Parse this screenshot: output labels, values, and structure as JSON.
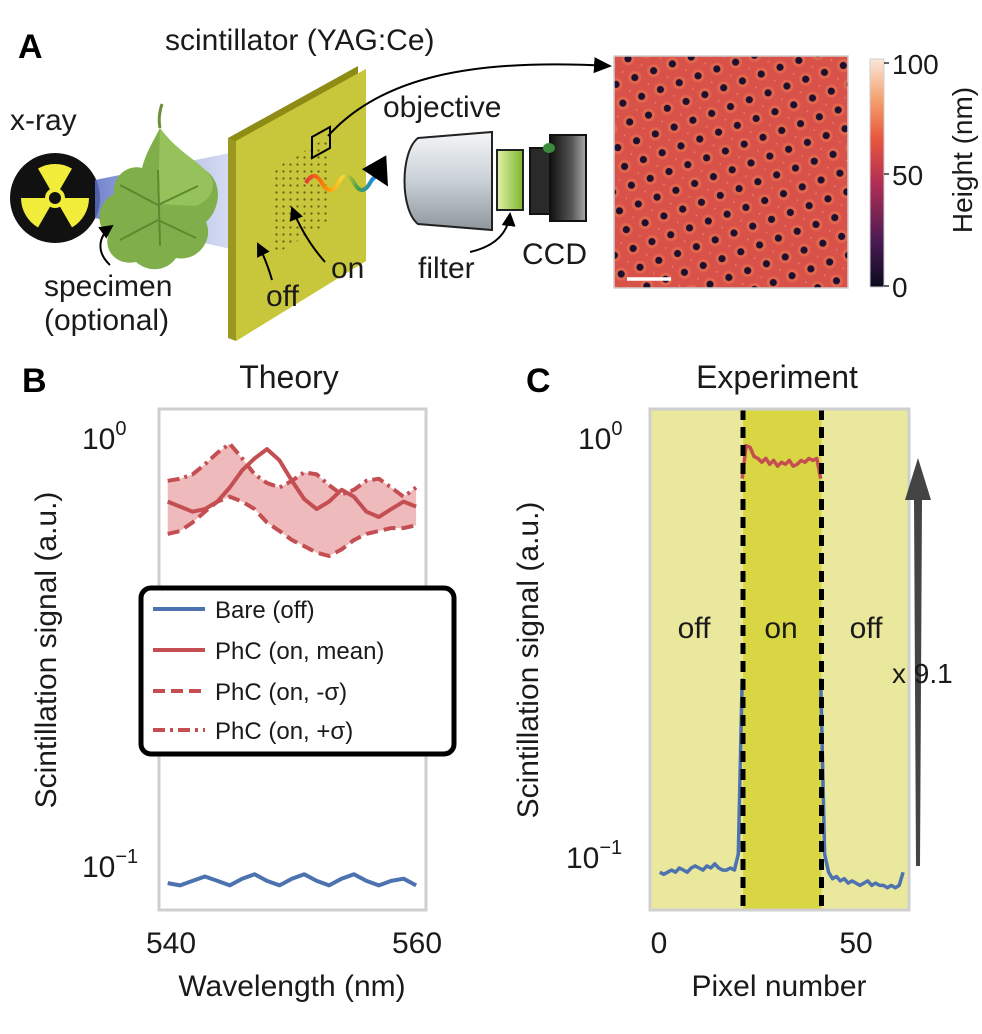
{
  "panel_a": {
    "letter": "A",
    "labels": {
      "scintillator": "scintillator (YAG:Ce)",
      "xray": "x-ray",
      "objective": "objective",
      "specimen_line1": "specimen",
      "specimen_line2": "(optional)",
      "off": "off",
      "on": "on",
      "filter": "filter",
      "ccd": "CCD"
    },
    "colorbar": {
      "label": "Height (nm)",
      "ticks": [
        "100",
        "50",
        "0"
      ],
      "range": [
        0,
        100
      ]
    },
    "colors": {
      "scintillator": "#c8c63a",
      "afm_base": "#d9524a",
      "afm_hole": "#1b1030"
    }
  },
  "chart_data": [
    {
      "panel": "B",
      "type": "line",
      "title": "Theory",
      "xlabel": "Wavelength (nm)",
      "ylabel": "Scintillation signal (a.u.)",
      "xlim": [
        539.3,
        560.8
      ],
      "ylim": [
        0.065,
        1.2
      ],
      "yscale": "log",
      "x_ticks": [
        "540",
        "560"
      ],
      "y_ticks": [
        {
          "base": "10",
          "exp": "0",
          "value": 1.0
        },
        {
          "base": "10",
          "exp": "−1",
          "value": 0.1
        }
      ],
      "legend": {
        "placement": "center-left",
        "entries": [
          "Bare (off)",
          "PhC (on, mean)",
          "PhC (on, -σ)",
          "PhC (on, +σ)"
        ]
      },
      "x": [
        540,
        541,
        542,
        543,
        544,
        545,
        546,
        547,
        548,
        549,
        550,
        551,
        552,
        553,
        554,
        555,
        556,
        557,
        558,
        559,
        560
      ],
      "series": [
        {
          "name": "Bare (off)",
          "color": "#4c72b0",
          "style": "solid",
          "values": [
            0.076,
            0.075,
            0.077,
            0.079,
            0.077,
            0.075,
            0.078,
            0.08,
            0.077,
            0.075,
            0.078,
            0.08,
            0.077,
            0.075,
            0.078,
            0.08,
            0.077,
            0.075,
            0.077,
            0.078,
            0.075
          ]
        },
        {
          "name": "PhC (on, mean)",
          "color": "#c44e52",
          "style": "solid",
          "values": [
            0.7,
            0.68,
            0.66,
            0.67,
            0.7,
            0.76,
            0.84,
            0.9,
            0.95,
            0.89,
            0.79,
            0.71,
            0.67,
            0.7,
            0.75,
            0.72,
            0.66,
            0.64,
            0.67,
            0.7,
            0.68
          ]
        },
        {
          "name": "PhC (on, -σ)",
          "color": "#c44e52",
          "style": "dashed",
          "values": [
            0.58,
            0.59,
            0.62,
            0.66,
            0.7,
            0.72,
            0.7,
            0.67,
            0.62,
            0.59,
            0.56,
            0.54,
            0.52,
            0.51,
            0.53,
            0.56,
            0.58,
            0.59,
            0.6,
            0.6,
            0.61
          ]
        },
        {
          "name": "PhC (on, +σ)",
          "color": "#c44e52",
          "style": "dashdot",
          "values": [
            0.79,
            0.8,
            0.82,
            0.87,
            0.93,
            0.98,
            0.9,
            0.82,
            0.78,
            0.76,
            0.79,
            0.83,
            0.82,
            0.77,
            0.73,
            0.75,
            0.79,
            0.8,
            0.76,
            0.72,
            0.76
          ]
        }
      ],
      "band": {
        "between": [
          "PhC (on, -σ)",
          "PhC (on, +σ)"
        ],
        "color": "#e8a3a6"
      },
      "grid": false
    },
    {
      "panel": "C",
      "type": "line",
      "title": "Experiment",
      "xlabel": "Pixel number",
      "ylabel": "Scintillation signal (a.u.)",
      "xlim": [
        -2.5,
        63.5
      ],
      "ylim": [
        0.065,
        1.2
      ],
      "yscale": "log",
      "x_ticks": [
        "0",
        "50"
      ],
      "y_ticks": [
        {
          "base": "10",
          "exp": "0",
          "value": 1.0
        },
        {
          "base": "10",
          "exp": "−1",
          "value": 0.1
        }
      ],
      "regions": [
        {
          "label": "off",
          "x_range": [
            -2.5,
            21.2
          ],
          "color": "#e9e89c"
        },
        {
          "label": "on",
          "x_range": [
            21.2,
            41.2
          ],
          "color": "#d8d642"
        },
        {
          "label": "off",
          "x_range": [
            41.2,
            63.5
          ],
          "color": "#e9e89c"
        }
      ],
      "boundaries": [
        21.2,
        41.2
      ],
      "annotation": {
        "text": "x 9.1",
        "arrow": "upward, spans 10⁻¹ to 10⁰"
      },
      "series": [
        {
          "name": "",
          "color": "#4c72b0",
          "style": "solid",
          "x": [
            0,
            1,
            2,
            3,
            4,
            5,
            6,
            7,
            8,
            9,
            10,
            11,
            12,
            13,
            14,
            15,
            16,
            17,
            18,
            19,
            20,
            21
          ],
          "values": [
            0.081,
            0.08,
            0.081,
            0.082,
            0.081,
            0.083,
            0.082,
            0.081,
            0.083,
            0.084,
            0.083,
            0.082,
            0.084,
            0.083,
            0.085,
            0.083,
            0.082,
            0.082,
            0.083,
            0.082,
            0.09,
            0.25
          ]
        },
        {
          "name": "",
          "color": "#c44e52",
          "style": "solid",
          "x": [
            21,
            22,
            23,
            24,
            25,
            26,
            27,
            28,
            29,
            30,
            31,
            32,
            33,
            34,
            35,
            36,
            37,
            38,
            39,
            40,
            41
          ],
          "values": [
            0.8,
            0.97,
            0.96,
            0.91,
            0.9,
            0.88,
            0.9,
            0.87,
            0.89,
            0.86,
            0.88,
            0.87,
            0.89,
            0.86,
            0.87,
            0.89,
            0.88,
            0.9,
            0.89,
            0.9,
            0.8
          ]
        },
        {
          "name": "",
          "color": "#4c72b0",
          "style": "solid",
          "x": [
            41,
            42,
            43,
            44,
            45,
            46,
            47,
            48,
            49,
            50,
            51,
            52,
            53,
            54,
            55,
            56,
            57,
            58,
            59,
            60,
            61,
            62
          ],
          "values": [
            0.25,
            0.09,
            0.081,
            0.078,
            0.079,
            0.077,
            0.078,
            0.076,
            0.077,
            0.076,
            0.075,
            0.076,
            0.077,
            0.075,
            0.076,
            0.075,
            0.075,
            0.074,
            0.075,
            0.074,
            0.075,
            0.081
          ]
        }
      ],
      "grid": false
    }
  ]
}
